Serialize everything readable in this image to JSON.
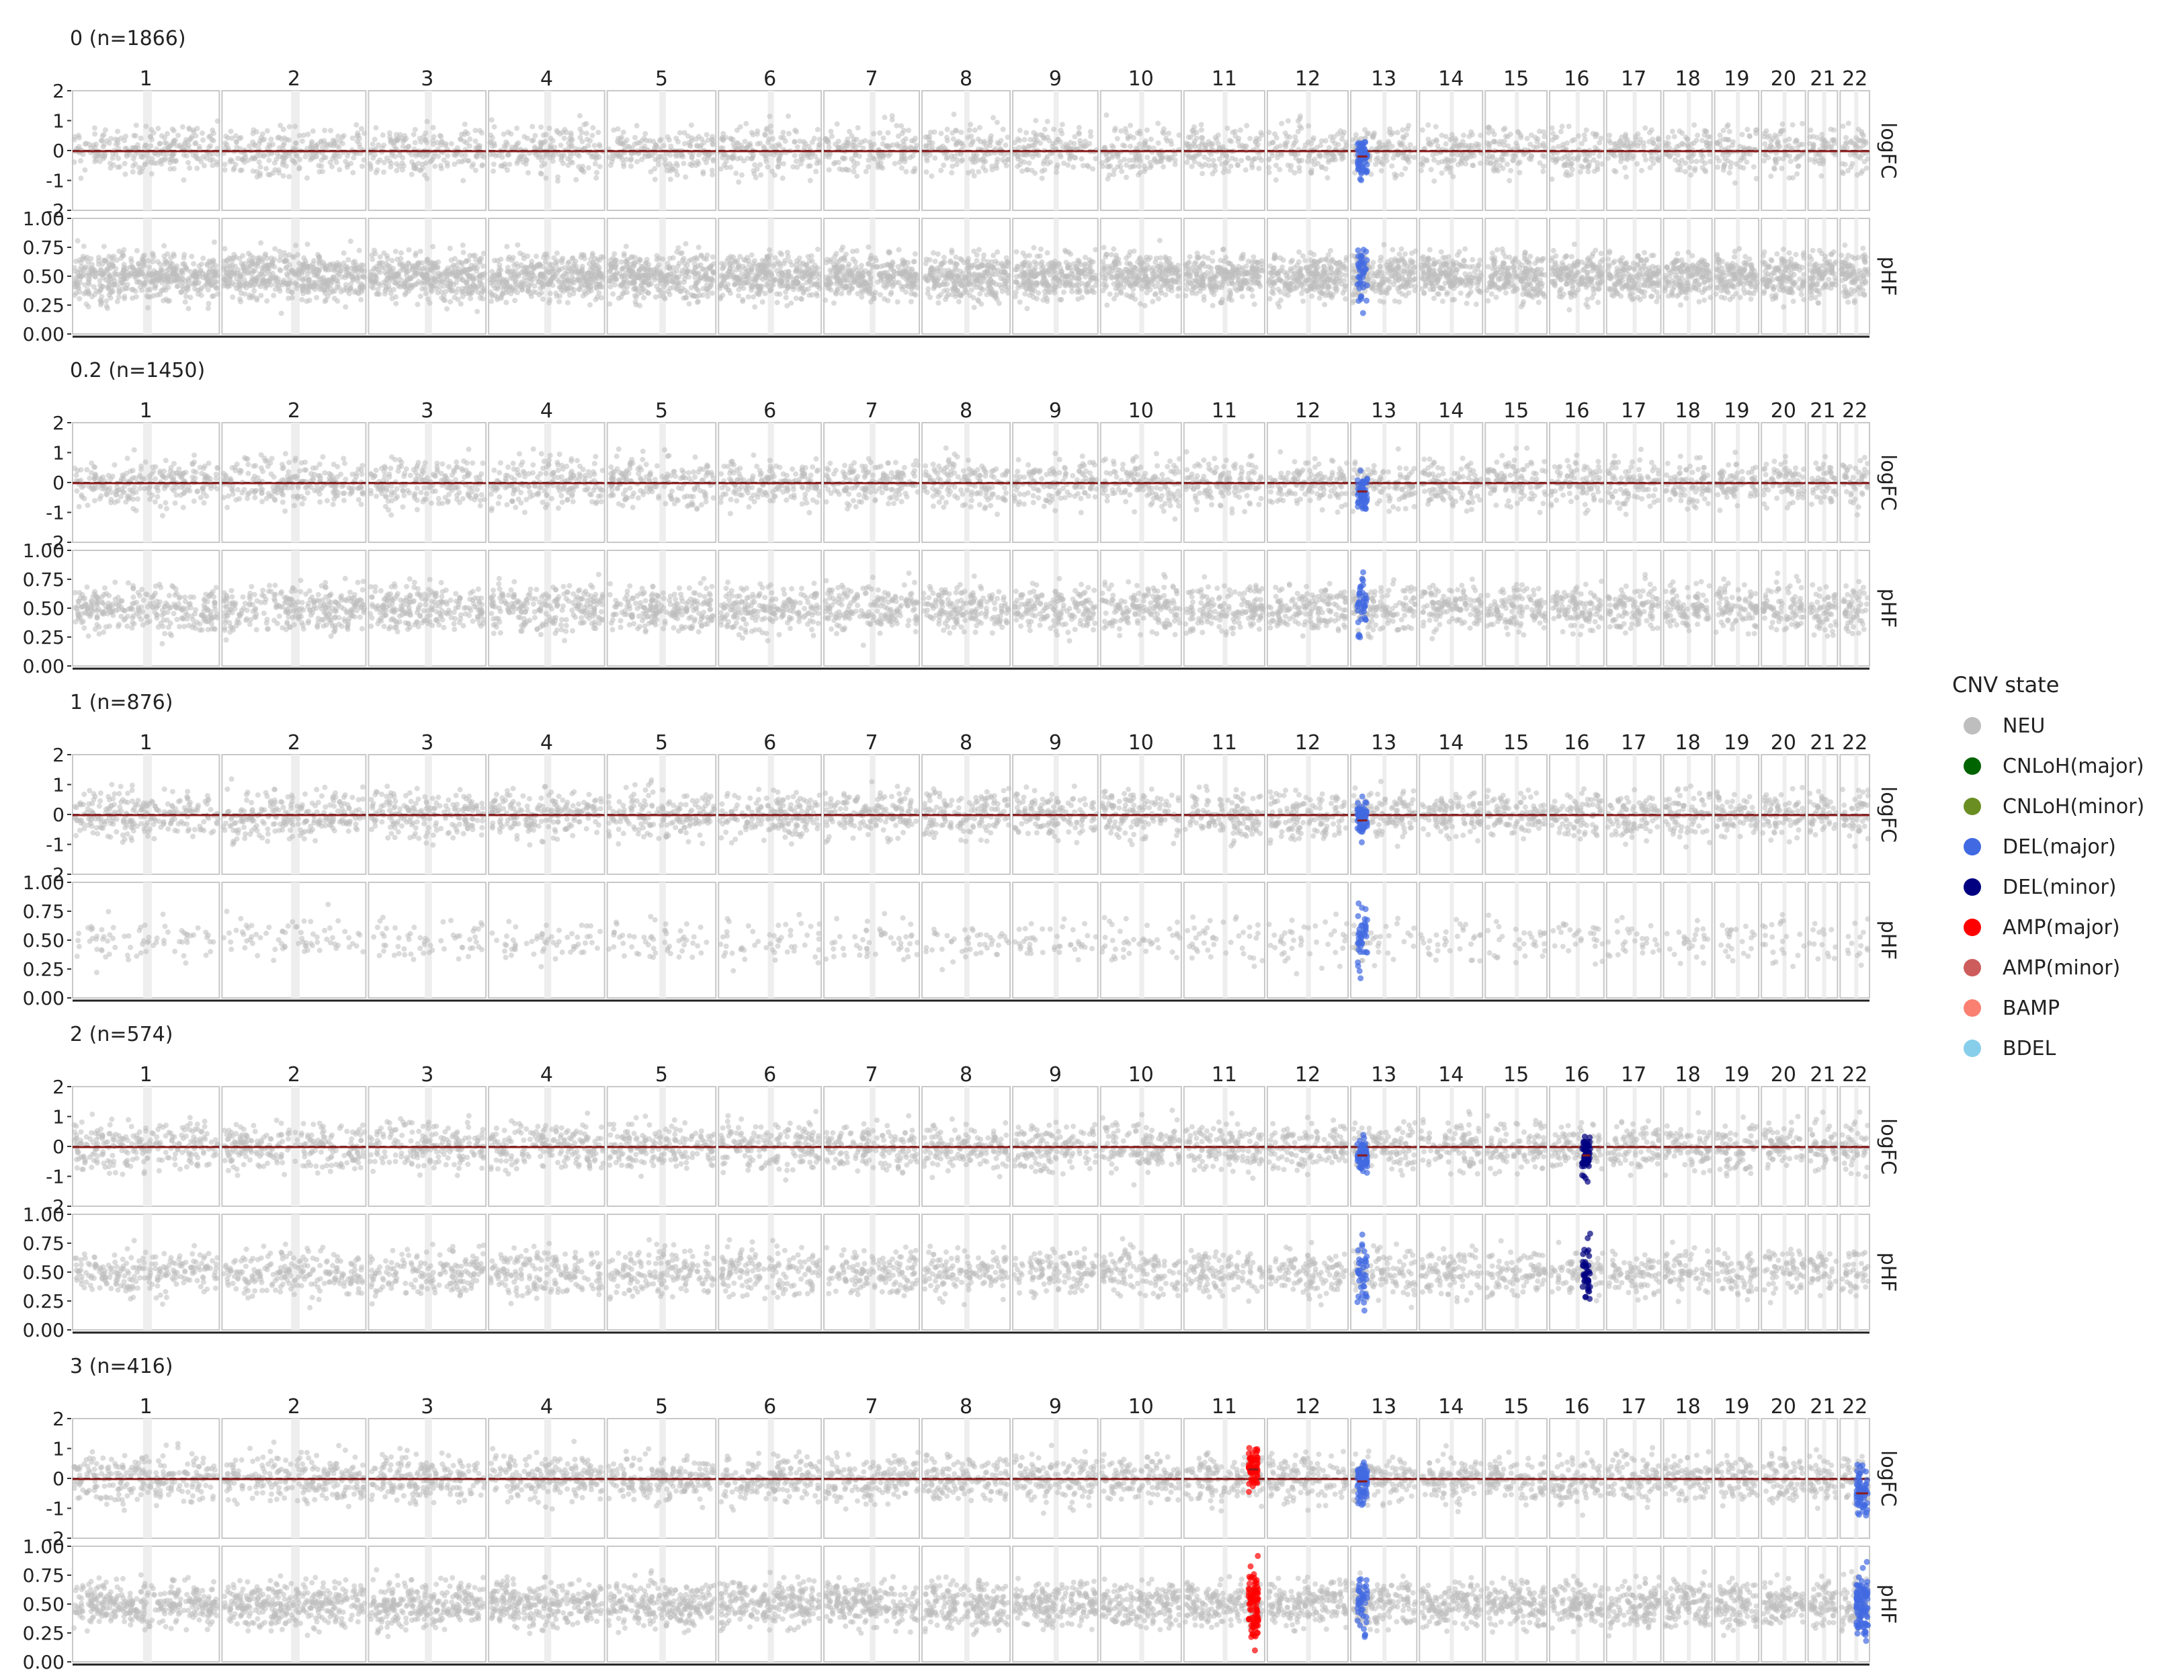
{
  "chart_data": {
    "type": "scatter",
    "chromosomes": [
      "1",
      "2",
      "3",
      "4",
      "5",
      "6",
      "7",
      "8",
      "9",
      "10",
      "11",
      "12",
      "13",
      "14",
      "15",
      "16",
      "17",
      "18",
      "19",
      "20",
      "21",
      "22"
    ],
    "chrom_relative_width": [
      1.0,
      0.98,
      0.8,
      0.79,
      0.74,
      0.7,
      0.65,
      0.6,
      0.58,
      0.55,
      0.55,
      0.55,
      0.45,
      0.43,
      0.42,
      0.37,
      0.37,
      0.33,
      0.3,
      0.3,
      0.2,
      0.2
    ],
    "track_labels": [
      "logFC",
      "pHF"
    ],
    "logfc_ticks": [
      "2",
      "1",
      "0",
      "-1",
      "-2"
    ],
    "logfc_ylim": [
      -2,
      2
    ],
    "phf_ticks": [
      "1.00",
      "0.75",
      "0.50",
      "0.25",
      "0.00"
    ],
    "phf_ylim": [
      0,
      1
    ],
    "clones": [
      {
        "title": "0 (n=1866)",
        "phf_density": 1.0,
        "events": [
          {
            "chrom": "13",
            "state": "DEL(major)",
            "start": 0.1,
            "end": 0.25,
            "mean_logfc": -0.2
          }
        ]
      },
      {
        "title": "0.2 (n=1450)",
        "phf_density": 0.6,
        "events": [
          {
            "chrom": "13",
            "state": "DEL(major)",
            "start": 0.1,
            "end": 0.25,
            "mean_logfc": -0.3
          }
        ]
      },
      {
        "title": "1 (n=876)",
        "phf_density": 0.15,
        "events": [
          {
            "chrom": "13",
            "state": "DEL(major)",
            "start": 0.1,
            "end": 0.25,
            "mean_logfc": -0.2
          }
        ]
      },
      {
        "title": "2 (n=574)",
        "phf_density": 0.45,
        "events": [
          {
            "chrom": "13",
            "state": "DEL(major)",
            "start": 0.1,
            "end": 0.25,
            "mean_logfc": -0.3
          },
          {
            "chrom": "16",
            "state": "DEL(minor)",
            "start": 0.6,
            "end": 0.75,
            "mean_logfc": -0.3
          }
        ]
      },
      {
        "title": "3 (n=416)",
        "phf_density": 0.7,
        "events": [
          {
            "chrom": "11",
            "state": "AMP(major)",
            "start": 0.8,
            "end": 0.92,
            "mean_logfc": 0.3
          },
          {
            "chrom": "13",
            "state": "DEL(major)",
            "start": 0.1,
            "end": 0.25,
            "mean_logfc": -0.1
          },
          {
            "chrom": "22",
            "state": "DEL(major)",
            "start": 0.55,
            "end": 0.95,
            "mean_logfc": -0.5
          }
        ]
      }
    ],
    "legend": {
      "title": "CNV state",
      "position": "right",
      "items": [
        {
          "label": "NEU",
          "color": "#BEBEBE"
        },
        {
          "label": "CNLoH(major)",
          "color": "#006400"
        },
        {
          "label": "CNLoH(minor)",
          "color": "#6B8E23"
        },
        {
          "label": "DEL(major)",
          "color": "#4169E1"
        },
        {
          "label": "DEL(minor)",
          "color": "#000080"
        },
        {
          "label": "AMP(major)",
          "color": "#FF0000"
        },
        {
          "label": "AMP(minor)",
          "color": "#CD5C5C"
        },
        {
          "label": "BAMP",
          "color": "#FA8072"
        },
        {
          "label": "BDEL",
          "color": "#87CEEB"
        }
      ]
    },
    "segment_color": "#8B1A1A"
  }
}
